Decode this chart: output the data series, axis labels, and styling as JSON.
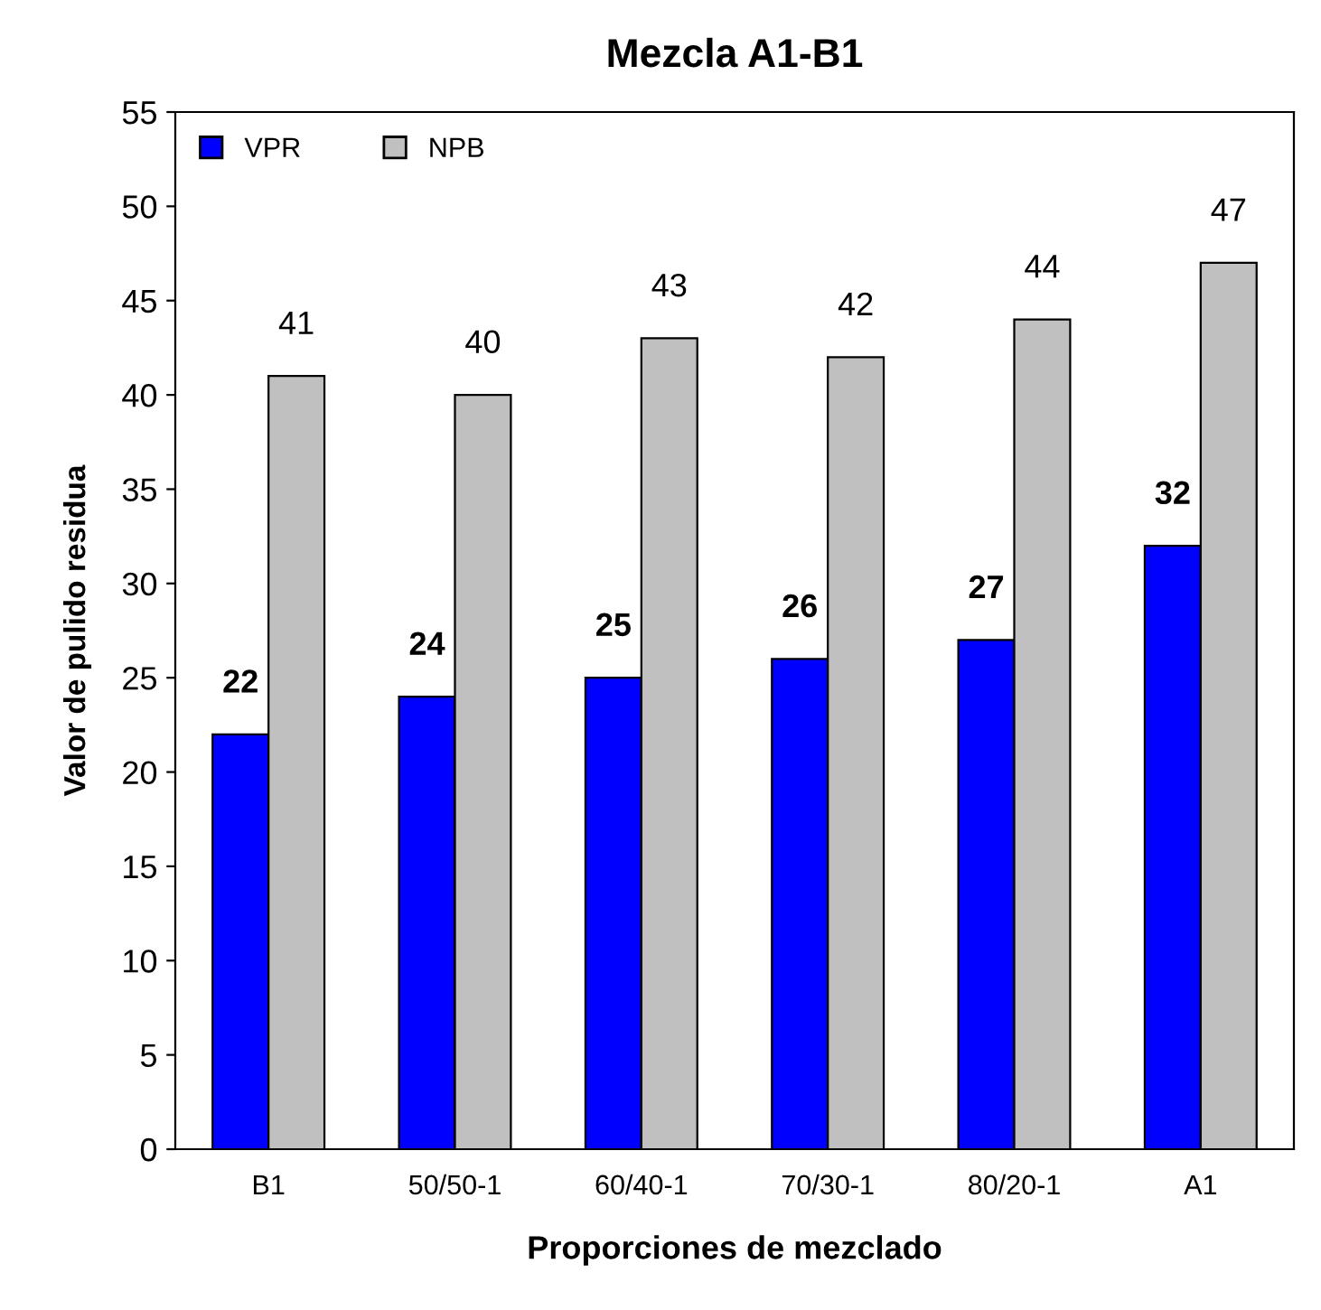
{
  "chart_data": {
    "type": "bar",
    "title": "Mezcla A1-B1",
    "xlabel": "Proporciones de mezclado",
    "ylabel": "Valor de pulido residua",
    "categories": [
      "B1",
      "50/50-1",
      "60/40-1",
      "70/30-1",
      "80/20-1",
      "A1"
    ],
    "series": [
      {
        "name": "VPR",
        "color": "#0000ff",
        "values": [
          22,
          24,
          25,
          26,
          27,
          32
        ]
      },
      {
        "name": "NPB",
        "color": "#c0c0c0",
        "values": [
          41,
          40,
          43,
          42,
          44,
          47
        ]
      }
    ],
    "ylim": [
      0,
      55
    ],
    "yticks": [
      0,
      5,
      10,
      15,
      20,
      25,
      30,
      35,
      40,
      45,
      50,
      55
    ],
    "grid": false,
    "legend": "top left",
    "data_labels": true
  }
}
